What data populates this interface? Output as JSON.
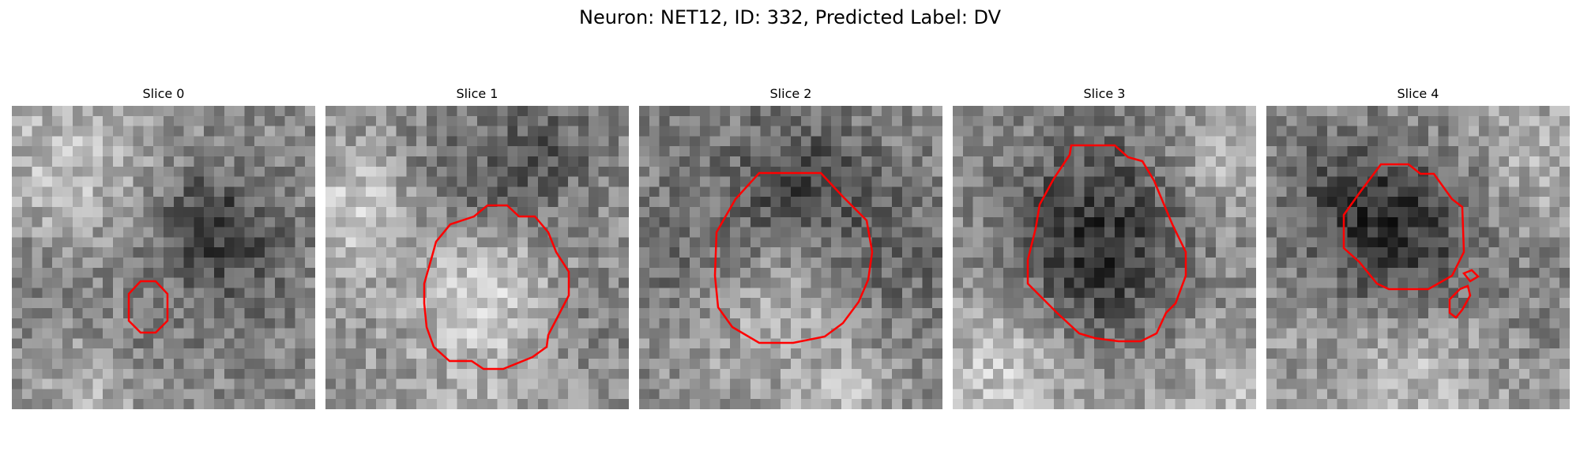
{
  "figure": {
    "title": "Neuron: NET12, ID: 332, Predicted Label: DV"
  },
  "panels": [
    {
      "label": "Slice 0"
    },
    {
      "label": "Slice 1"
    },
    {
      "label": "Slice 2"
    },
    {
      "label": "Slice 3"
    },
    {
      "label": "Slice 4"
    }
  ],
  "colors": {
    "contour": "#ff0000",
    "colormap": "grayscale"
  }
}
